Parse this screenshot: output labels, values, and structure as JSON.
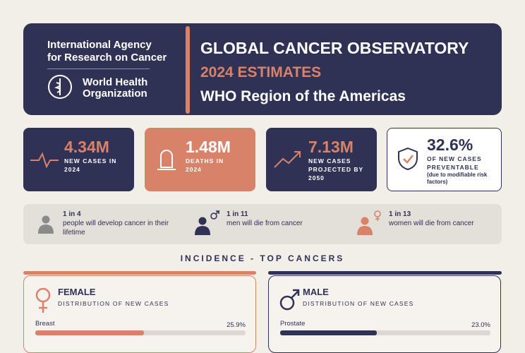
{
  "header": {
    "org_lines": [
      "International Agency",
      "for Research on Cancer"
    ],
    "who_lines": [
      "World Health",
      "Organization"
    ],
    "title": "GLOBAL CANCER OBSERVATORY",
    "subtitle": "2024 ESTIMATES",
    "region": "WHO Region of the Americas"
  },
  "stats": [
    {
      "value": "4.34M",
      "label": "NEW CASES IN 2024"
    },
    {
      "value": "1.48M",
      "label": "DEATHS IN 2024"
    },
    {
      "value": "7.13M",
      "label": "NEW CASES PROJECTED BY 2050"
    },
    {
      "value": "32.6%",
      "label": "OF NEW CASES PREVENTABLE",
      "note": "(due to modifiable risk factors)"
    }
  ],
  "risks": [
    {
      "ratio": "1 in 4",
      "text": "people will develop cancer in their lifetime"
    },
    {
      "ratio": "1 in 11",
      "text": "men will die from cancer"
    },
    {
      "ratio": "1 in 13",
      "text": "women will die from cancer"
    }
  ],
  "section_title": "INCIDENCE - TOP CANCERS",
  "panels": [
    {
      "title": "FEMALE",
      "subtitle": "DISTRIBUTION OF NEW CASES",
      "bars": [
        {
          "name": "Breast",
          "value": 25.9,
          "value_label": "25.9%"
        }
      ]
    },
    {
      "title": "MALE",
      "subtitle": "DISTRIBUTION OF NEW CASES",
      "bars": [
        {
          "name": "Prostate",
          "value": 23.0,
          "value_label": "23.0%"
        }
      ]
    }
  ]
}
